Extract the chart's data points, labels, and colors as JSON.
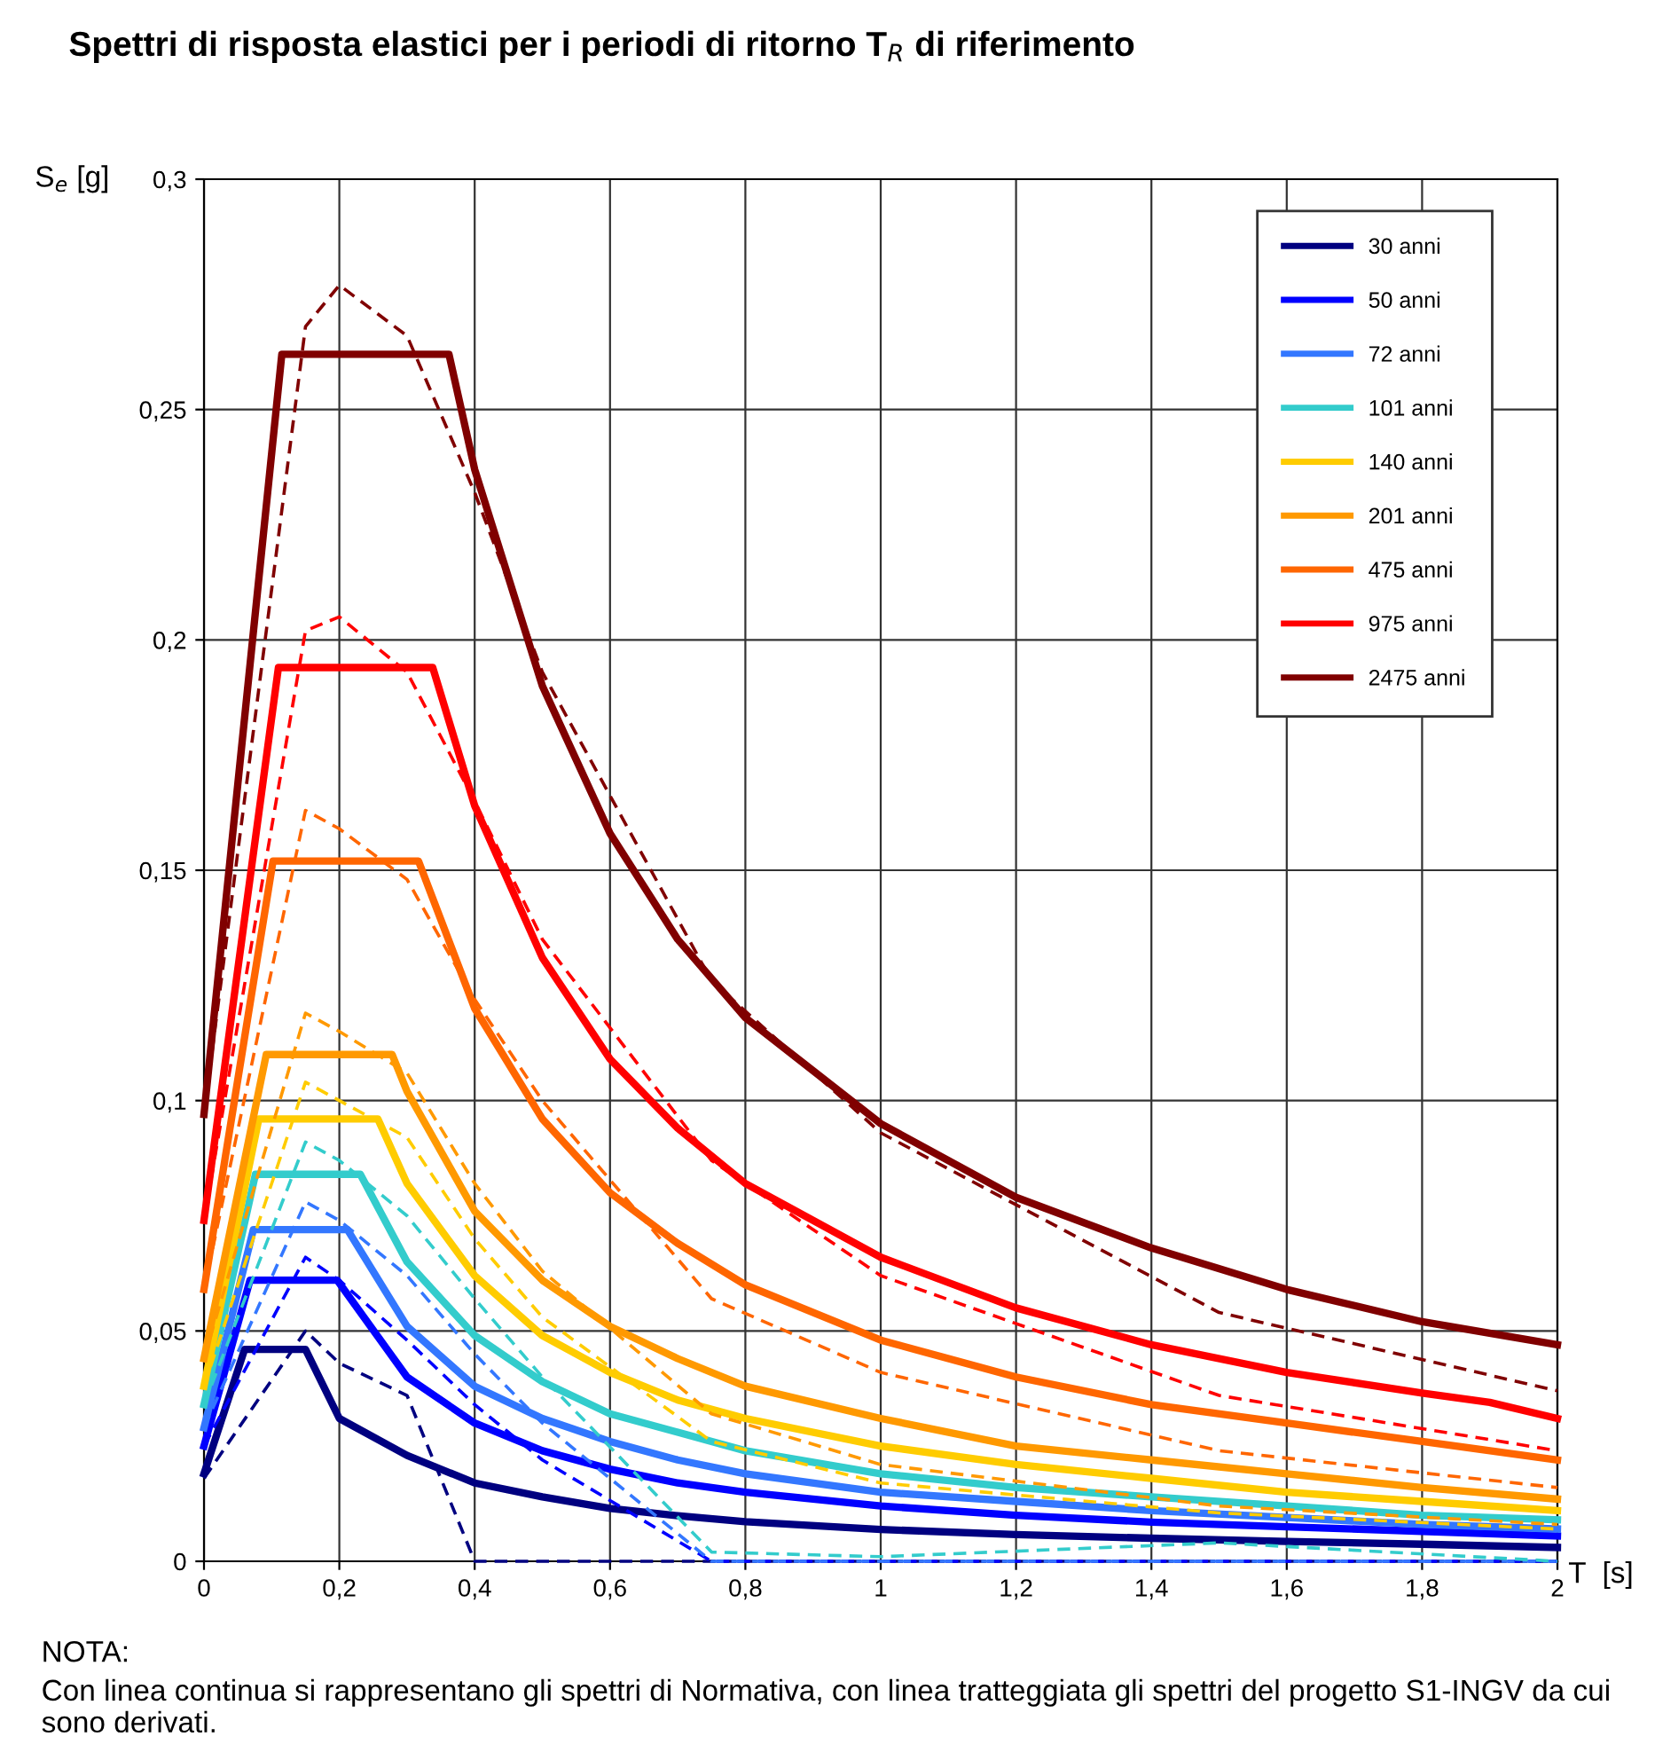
{
  "chart_data": {
    "type": "line",
    "title": "Spettri di risposta elastici per i periodi di ritorno T$_{R}$ di riferimento",
    "xlabel": "T  [s]",
    "ylabel": "S$_{e}$ [g]",
    "xlim": [
      0,
      2
    ],
    "ylim": [
      0,
      0.3
    ],
    "xticks": [
      0,
      {
        "value": 0.2,
        "label": "0,2"
      },
      {
        "value": 0.4,
        "label": "0,4"
      },
      {
        "value": 0.6,
        "label": "0,6"
      },
      {
        "value": 0.8,
        "label": "0,8"
      },
      1,
      {
        "value": 1.2,
        "label": "1,2"
      },
      {
        "value": 1.4,
        "label": "1,4"
      },
      {
        "value": 1.6,
        "label": "1,6"
      },
      {
        "value": 1.8,
        "label": "1,8"
      },
      2
    ],
    "yticks": [
      0,
      {
        "value": 0.05,
        "label": "0,05"
      },
      {
        "value": 0.1,
        "label": "0,1"
      },
      {
        "value": 0.15,
        "label": "0,15"
      },
      {
        "value": 0.2,
        "label": "0,2"
      },
      {
        "value": 0.25,
        "label": "0,25"
      },
      {
        "value": 0.3,
        "label": "0,3"
      }
    ],
    "grid": true,
    "legend": "top right",
    "marker": "none",
    "annotations": [
      "NOTA:",
      "Con linea continua si rappresentano gli spettri di Normativa, con linea tratteggiata gli spettri del progetto S1-INGV da cui sono derivati."
    ],
    "series": [
      {
        "name": "30 anni",
        "color": "#000080",
        "line_style": "solid",
        "x": [
          0,
          0.06,
          0.15,
          0.2,
          0.3,
          0.4,
          0.5,
          0.6,
          0.7,
          0.8,
          1.0,
          1.2,
          1.4,
          1.6,
          1.8,
          2.0
        ],
        "values": [
          0.019,
          0.046,
          0.046,
          0.031,
          0.023,
          0.017,
          0.014,
          0.0115,
          0.0099,
          0.0086,
          0.0069,
          0.0058,
          0.005,
          0.0043,
          0.0037,
          0.003
        ]
      },
      {
        "name": "50 anni",
        "color": "#0000ff",
        "line_style": "solid",
        "x": [
          0,
          0.068,
          0.197,
          0.3,
          0.4,
          0.5,
          0.6,
          0.7,
          0.8,
          1.0,
          1.2,
          1.4,
          1.6,
          1.8,
          2.0
        ],
        "values": [
          0.025,
          0.061,
          0.061,
          0.04,
          0.03,
          0.024,
          0.02,
          0.017,
          0.015,
          0.012,
          0.01,
          0.0085,
          0.0075,
          0.0065,
          0.0055
        ]
      },
      {
        "name": "72 anni",
        "color": "#3377ff",
        "line_style": "solid",
        "x": [
          0,
          0.073,
          0.212,
          0.3,
          0.4,
          0.5,
          0.6,
          0.7,
          0.8,
          1.0,
          1.2,
          1.4,
          1.6,
          1.8,
          2.0
        ],
        "values": [
          0.029,
          0.072,
          0.072,
          0.051,
          0.038,
          0.031,
          0.026,
          0.022,
          0.019,
          0.015,
          0.013,
          0.011,
          0.0095,
          0.008,
          0.007
        ]
      },
      {
        "name": "101 anni",
        "color": "#33cccc",
        "line_style": "solid",
        "x": [
          0,
          0.076,
          0.231,
          0.3,
          0.4,
          0.5,
          0.6,
          0.7,
          0.8,
          1.0,
          1.2,
          1.4,
          1.6,
          1.8,
          2.0
        ],
        "values": [
          0.034,
          0.084,
          0.084,
          0.065,
          0.049,
          0.039,
          0.032,
          0.028,
          0.024,
          0.019,
          0.016,
          0.014,
          0.012,
          0.01,
          0.009
        ]
      },
      {
        "name": "140 anni",
        "color": "#ffcc00",
        "line_style": "solid",
        "x": [
          0,
          0.081,
          0.257,
          0.3,
          0.4,
          0.5,
          0.6,
          0.7,
          0.8,
          1.0,
          1.2,
          1.4,
          1.6,
          1.8,
          2.0
        ],
        "values": [
          0.038,
          0.096,
          0.096,
          0.082,
          0.062,
          0.049,
          0.041,
          0.035,
          0.031,
          0.025,
          0.021,
          0.018,
          0.015,
          0.013,
          0.011
        ]
      },
      {
        "name": "201 anni",
        "color": "#ff9900",
        "line_style": "solid",
        "x": [
          0,
          0.092,
          0.278,
          0.3,
          0.4,
          0.5,
          0.6,
          0.7,
          0.8,
          1.0,
          1.2,
          1.4,
          1.6,
          1.8,
          2.0
        ],
        "values": [
          0.044,
          0.11,
          0.11,
          0.102,
          0.076,
          0.061,
          0.051,
          0.044,
          0.038,
          0.031,
          0.025,
          0.022,
          0.019,
          0.016,
          0.0135
        ]
      },
      {
        "name": "475 anni",
        "color": "#ff6600",
        "line_style": "solid",
        "x": [
          0,
          0.102,
          0.317,
          0.4,
          0.5,
          0.6,
          0.7,
          0.8,
          1.0,
          1.2,
          1.4,
          1.6,
          1.8,
          2.0
        ],
        "values": [
          0.059,
          0.152,
          0.152,
          0.12,
          0.096,
          0.08,
          0.069,
          0.06,
          0.048,
          0.04,
          0.034,
          0.03,
          0.026,
          0.022
        ]
      },
      {
        "name": "975 anni",
        "color": "#ff0000",
        "line_style": "solid",
        "x": [
          0,
          0.11,
          0.338,
          0.4,
          0.5,
          0.6,
          0.7,
          0.8,
          1.0,
          1.2,
          1.4,
          1.6,
          1.8,
          1.9,
          2.0
        ],
        "values": [
          0.074,
          0.194,
          0.194,
          0.164,
          0.131,
          0.109,
          0.094,
          0.082,
          0.066,
          0.055,
          0.047,
          0.041,
          0.0365,
          0.0345,
          0.031
        ]
      },
      {
        "name": "2475 anni",
        "color": "#800000",
        "line_style": "solid",
        "x": [
          0,
          0.115,
          0.362,
          0.4,
          0.5,
          0.6,
          0.7,
          0.8,
          1.0,
          1.2,
          1.4,
          1.6,
          1.8,
          2.0
        ],
        "values": [
          0.097,
          0.262,
          0.262,
          0.237,
          0.19,
          0.158,
          0.135,
          0.118,
          0.095,
          0.079,
          0.068,
          0.059,
          0.052,
          0.047
        ]
      },
      {
        "color": "#000080",
        "line_style": "dashed",
        "x": [
          0,
          0.15,
          0.2,
          0.3,
          0.4,
          0.5,
          0.75,
          1.0,
          1.5,
          2.0
        ],
        "values": [
          0.018,
          0.05,
          0.043,
          0.036,
          0.0,
          0.0,
          0.0,
          0.0,
          0.0,
          0.0
        ]
      },
      {
        "color": "#0000ff",
        "line_style": "dashed",
        "x": [
          0,
          0.15,
          0.2,
          0.3,
          0.4,
          0.5,
          0.75,
          1.0,
          1.5,
          2.0
        ],
        "values": [
          0.025,
          0.066,
          0.061,
          0.048,
          0.034,
          0.022,
          0.0,
          0.0,
          0.0,
          0.0
        ]
      },
      {
        "color": "#3377ff",
        "line_style": "dashed",
        "x": [
          0,
          0.15,
          0.2,
          0.3,
          0.4,
          0.5,
          0.75,
          1.0,
          1.5,
          2.0
        ],
        "values": [
          0.029,
          0.078,
          0.074,
          0.062,
          0.045,
          0.03,
          0.0,
          0.0,
          0.0,
          0.0
        ]
      },
      {
        "color": "#33cccc",
        "line_style": "dashed",
        "x": [
          0,
          0.15,
          0.2,
          0.3,
          0.4,
          0.5,
          0.75,
          1.0,
          1.5,
          2.0
        ],
        "values": [
          0.034,
          0.091,
          0.087,
          0.075,
          0.057,
          0.04,
          0.002,
          0.001,
          0.004,
          0.0
        ]
      },
      {
        "color": "#ffcc00",
        "line_style": "dashed",
        "x": [
          0,
          0.15,
          0.2,
          0.3,
          0.4,
          0.5,
          0.75,
          1.0,
          1.5,
          2.0
        ],
        "values": [
          0.038,
          0.104,
          0.1,
          0.092,
          0.07,
          0.053,
          0.026,
          0.017,
          0.0105,
          0.007
        ]
      },
      {
        "color": "#ff9900",
        "line_style": "dashed",
        "x": [
          0,
          0.15,
          0.2,
          0.3,
          0.4,
          0.5,
          0.75,
          1.0,
          1.5,
          2.0
        ],
        "values": [
          0.044,
          0.119,
          0.115,
          0.106,
          0.082,
          0.063,
          0.032,
          0.021,
          0.012,
          0.008
        ]
      },
      {
        "color": "#ff6600",
        "line_style": "dashed",
        "x": [
          0,
          0.15,
          0.2,
          0.3,
          0.4,
          0.5,
          0.75,
          1.0,
          1.5,
          2.0
        ],
        "values": [
          0.059,
          0.163,
          0.159,
          0.148,
          0.122,
          0.1,
          0.057,
          0.041,
          0.024,
          0.016
        ]
      },
      {
        "color": "#ff0000",
        "line_style": "dashed",
        "x": [
          0,
          0.15,
          0.2,
          0.3,
          0.4,
          0.5,
          0.75,
          1.0,
          1.5,
          2.0
        ],
        "values": [
          0.074,
          0.202,
          0.205,
          0.193,
          0.165,
          0.135,
          0.087,
          0.062,
          0.036,
          0.024
        ]
      },
      {
        "color": "#800000",
        "line_style": "dashed",
        "x": [
          0,
          0.15,
          0.2,
          0.3,
          0.4,
          0.5,
          0.75,
          1.0,
          1.5,
          2.0
        ],
        "values": [
          0.097,
          0.268,
          0.277,
          0.266,
          0.232,
          0.193,
          0.126,
          0.093,
          0.054,
          0.037
        ]
      }
    ]
  }
}
